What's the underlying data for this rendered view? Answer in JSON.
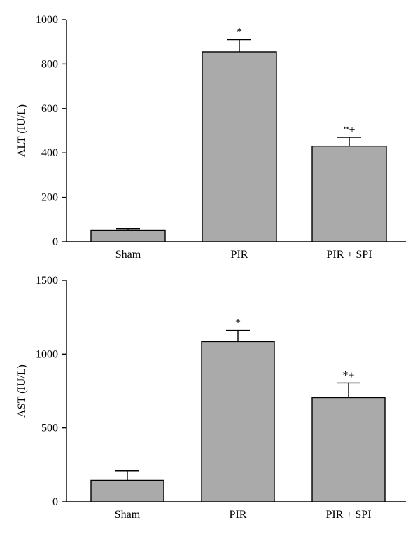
{
  "chart_data": [
    {
      "type": "bar",
      "ylabel": "ALT (IU/L)",
      "categories": [
        "Sham",
        "PIR",
        "PIR + SPI"
      ],
      "values": [
        52,
        855,
        430
      ],
      "errors": [
        6,
        55,
        40
      ],
      "annotations": [
        "",
        "*",
        "*+"
      ],
      "ylim": [
        0,
        1000
      ],
      "yticks": [
        0,
        200,
        400,
        600,
        800,
        1000
      ],
      "bar_color": "#aaaaaa"
    },
    {
      "type": "bar",
      "ylabel": "AST (IU/L)",
      "categories": [
        "Sham",
        "PIR",
        "PIR + SPI"
      ],
      "values": [
        145,
        1085,
        705
      ],
      "errors": [
        65,
        75,
        100
      ],
      "annotations": [
        "",
        "*",
        "*+"
      ],
      "ylim": [
        0,
        1500
      ],
      "yticks": [
        0,
        500,
        1000,
        1500
      ],
      "bar_color": "#aaaaaa"
    }
  ]
}
